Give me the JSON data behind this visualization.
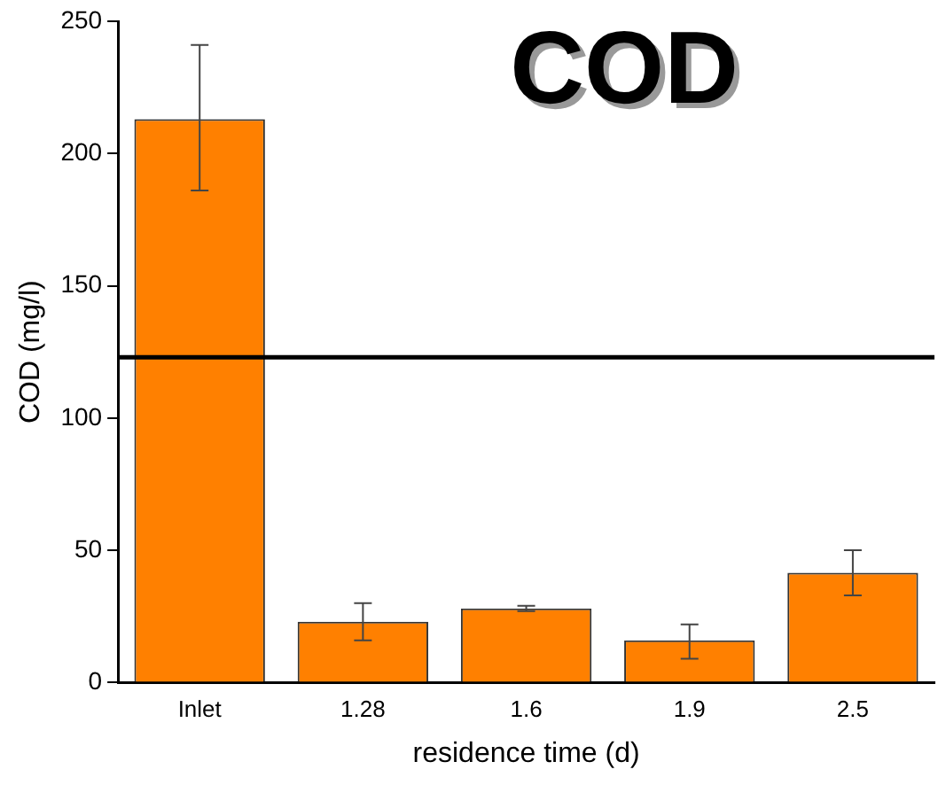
{
  "chart_data": {
    "type": "bar",
    "title": "COD",
    "xlabel": "residence time (d)",
    "ylabel": "COD (mg/l)",
    "categories": [
      "Inlet",
      "1.28",
      "1.6",
      "1.9",
      "2.5"
    ],
    "values": [
      213,
      23,
      28,
      16,
      41.5
    ],
    "errors": [
      [
        186,
        241
      ],
      [
        16,
        30
      ],
      [
        27,
        29
      ],
      [
        9,
        22
      ],
      [
        33,
        50
      ]
    ],
    "color": "#ff8000",
    "ylim": [
      0,
      250
    ],
    "yticks": [
      0,
      50,
      100,
      150,
      200,
      250
    ],
    "ref_lines": [
      {
        "axis": "y",
        "value": 123,
        "color": "#000000"
      }
    ],
    "grid": false,
    "legend": false
  }
}
